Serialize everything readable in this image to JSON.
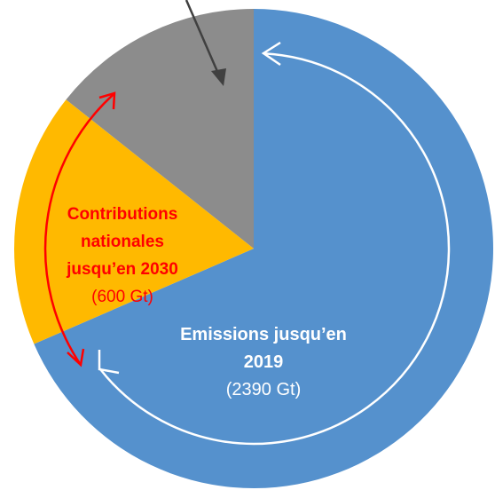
{
  "chart_data": {
    "type": "pie",
    "categories": [
      "Emissions jusqu’en 2019",
      "Contributions nationales jusqu’en 2030",
      null
    ],
    "values": [
      2390,
      600,
      500
    ],
    "value_labels": [
      "(2390 Gt)",
      "(600 Gt)",
      null
    ],
    "colors": [
      "#5591cd",
      "#ffb900",
      "#8c8c8c"
    ]
  }
}
